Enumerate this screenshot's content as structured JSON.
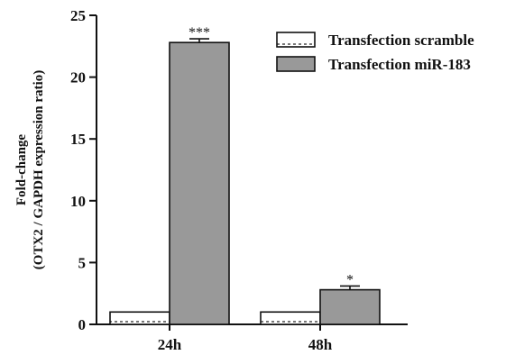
{
  "chart_data": {
    "type": "bar",
    "categories": [
      "24h",
      "48h"
    ],
    "series": [
      {
        "name": "Transfection scramble",
        "values": [
          1.0,
          1.0
        ],
        "errors": [
          0,
          0
        ],
        "fill": "#ffffff",
        "pattern": "dotted"
      },
      {
        "name": "Transfection miR-183",
        "values": [
          22.8,
          2.8
        ],
        "errors": [
          0.3,
          0.3
        ],
        "fill": "#999999",
        "pattern": "solid"
      }
    ],
    "significance": [
      {
        "category": "24h",
        "series": "Transfection miR-183",
        "label": "***"
      },
      {
        "category": "48h",
        "series": "Transfection miR-183",
        "label": "*"
      }
    ],
    "ylabel_lines": [
      "Fold-change",
      "(OTX2 / GAPDH expression ratio)"
    ],
    "ylim": [
      0,
      25
    ],
    "yticks": [
      0,
      5,
      10,
      15,
      20,
      25
    ],
    "legend_position": "top-right",
    "grid": false
  }
}
